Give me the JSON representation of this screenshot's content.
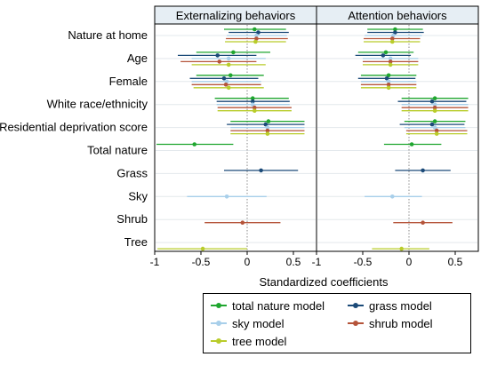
{
  "chart_data": {
    "type": "scatter",
    "subtype": "coefficient-plot",
    "xlabel": "Standardized coefficients",
    "xlim": [
      -1,
      0.75
    ],
    "xticks": [
      -1,
      -0.5,
      0,
      0.5
    ],
    "xtick_labels": [
      "-1",
      "-0.5",
      "0",
      "0.5"
    ],
    "zero_reference_line": "dotted",
    "legend_position": "bottom-right",
    "rows": [
      "Nature at home",
      "Age",
      "Female",
      "White race/ethnicity",
      "Residential deprivation score",
      "Total nature",
      "Grass",
      "Sky",
      "Shrub",
      "Tree"
    ],
    "series": [
      {
        "key": "total",
        "name": "total nature model",
        "color": "#1fa62f"
      },
      {
        "key": "grass",
        "name": "grass model",
        "color": "#1b4a78"
      },
      {
        "key": "sky",
        "name": "sky model",
        "color": "#a8cfea"
      },
      {
        "key": "shrub",
        "name": "shrub model",
        "color": "#b5543a"
      },
      {
        "key": "tree",
        "name": "tree model",
        "color": "#b9cc2a"
      }
    ],
    "panels": [
      {
        "title": "Externalizing behaviors",
        "estimates": {
          "Nature at home": {
            "total": [
              0.08,
              -0.25,
              0.42
            ],
            "grass": [
              0.12,
              -0.2,
              0.45
            ],
            "sky": [
              0.1,
              -0.22,
              0.43
            ],
            "shrub": [
              0.1,
              -0.23,
              0.44
            ],
            "tree": [
              0.09,
              -0.24,
              0.42
            ]
          },
          "Age": {
            "total": [
              -0.15,
              -0.55,
              0.25
            ],
            "grass": [
              -0.32,
              -0.75,
              0.1
            ],
            "sky": [
              -0.2,
              -0.6,
              0.2
            ],
            "shrub": [
              -0.3,
              -0.72,
              0.1
            ],
            "tree": [
              -0.2,
              -0.6,
              0.2
            ]
          },
          "Female": {
            "total": [
              -0.18,
              -0.55,
              0.18
            ],
            "grass": [
              -0.25,
              -0.62,
              0.12
            ],
            "sky": [
              -0.22,
              -0.6,
              0.15
            ],
            "shrub": [
              -0.23,
              -0.6,
              0.15
            ],
            "tree": [
              -0.2,
              -0.58,
              0.18
            ]
          },
          "White race/ethnicity": {
            "total": [
              0.06,
              -0.35,
              0.45
            ],
            "grass": [
              0.06,
              -0.33,
              0.46
            ],
            "sky": [
              0.06,
              -0.33,
              0.46
            ],
            "shrub": [
              0.08,
              -0.32,
              0.48
            ],
            "tree": [
              0.08,
              -0.32,
              0.48
            ]
          },
          "Residential deprivation score": {
            "total": [
              0.23,
              -0.18,
              0.62
            ],
            "grass": [
              0.2,
              -0.22,
              0.62
            ],
            "sky": [
              0.22,
              -0.18,
              0.62
            ],
            "shrub": [
              0.22,
              -0.18,
              0.62
            ],
            "tree": [
              0.22,
              -0.18,
              0.62
            ]
          },
          "Total nature": {
            "total": [
              -0.57,
              -0.98,
              -0.15
            ]
          },
          "Grass": {
            "grass": [
              0.15,
              -0.25,
              0.55
            ]
          },
          "Sky": {
            "sky": [
              -0.22,
              -0.65,
              0.21
            ]
          },
          "Shrub": {
            "shrub": [
              -0.05,
              -0.46,
              0.36
            ]
          },
          "Tree": {
            "tree": [
              -0.48,
              -0.97,
              0.0
            ]
          }
        }
      },
      {
        "title": "Attention behaviors",
        "estimates": {
          "Nature at home": {
            "total": [
              -0.15,
              -0.45,
              0.15
            ],
            "grass": [
              -0.15,
              -0.45,
              0.16
            ],
            "sky": [
              -0.17,
              -0.48,
              0.14
            ],
            "shrub": [
              -0.18,
              -0.49,
              0.12
            ],
            "tree": [
              -0.18,
              -0.49,
              0.12
            ]
          },
          "Age": {
            "total": [
              -0.25,
              -0.55,
              0.05
            ],
            "grass": [
              -0.28,
              -0.58,
              0.02
            ],
            "sky": [
              -0.2,
              -0.5,
              0.1
            ],
            "shrub": [
              -0.2,
              -0.5,
              0.1
            ],
            "tree": [
              -0.2,
              -0.5,
              0.1
            ]
          },
          "Female": {
            "total": [
              -0.22,
              -0.52,
              0.08
            ],
            "grass": [
              -0.24,
              -0.55,
              0.07
            ],
            "sky": [
              -0.22,
              -0.52,
              0.08
            ],
            "shrub": [
              -0.22,
              -0.52,
              0.08
            ],
            "tree": [
              -0.22,
              -0.52,
              0.08
            ]
          },
          "White race/ethnicity": {
            "total": [
              0.28,
              -0.08,
              0.64
            ],
            "grass": [
              0.25,
              -0.12,
              0.62
            ],
            "sky": [
              0.28,
              -0.08,
              0.64
            ],
            "shrub": [
              0.28,
              -0.08,
              0.64
            ],
            "tree": [
              0.28,
              -0.08,
              0.64
            ]
          },
          "Residential deprivation score": {
            "total": [
              0.28,
              -0.05,
              0.61
            ],
            "grass": [
              0.25,
              -0.1,
              0.6
            ],
            "sky": [
              0.28,
              -0.05,
              0.61
            ],
            "shrub": [
              0.3,
              -0.03,
              0.63
            ],
            "tree": [
              0.3,
              -0.03,
              0.63
            ]
          },
          "Total nature": {
            "total": [
              0.03,
              -0.27,
              0.35
            ]
          },
          "Grass": {
            "grass": [
              0.15,
              -0.15,
              0.45
            ]
          },
          "Sky": {
            "sky": [
              -0.18,
              -0.48,
              0.14
            ]
          },
          "Shrub": {
            "shrub": [
              0.15,
              -0.17,
              0.47
            ]
          },
          "Tree": {
            "tree": [
              -0.08,
              -0.4,
              0.22
            ]
          }
        }
      }
    ]
  }
}
